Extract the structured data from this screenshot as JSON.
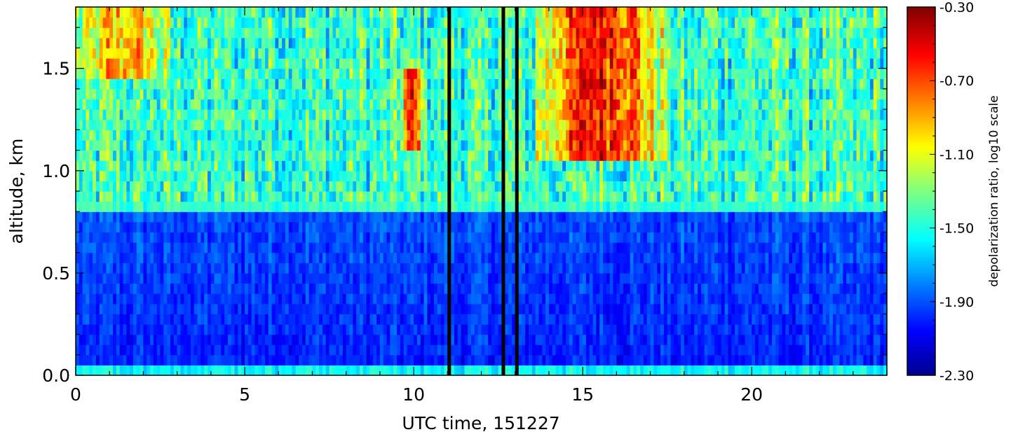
{
  "chart_data": {
    "type": "heatmap",
    "title": "",
    "xlabel": "UTC time, 151227",
    "ylabel": "altitude, km",
    "xlim": [
      0,
      24
    ],
    "ylim": [
      0,
      1.8
    ],
    "x_ticks": [
      {
        "value": 0,
        "label": "0"
      },
      {
        "value": 5,
        "label": "5"
      },
      {
        "value": 10,
        "label": "10"
      },
      {
        "value": 15,
        "label": "15"
      },
      {
        "value": 20,
        "label": "20"
      }
    ],
    "y_ticks": [
      {
        "value": 0.0,
        "label": "0.0"
      },
      {
        "value": 0.5,
        "label": "0.5"
      },
      {
        "value": 1.0,
        "label": "1.0"
      },
      {
        "value": 1.5,
        "label": "1.5"
      }
    ],
    "colorbar": {
      "label": "depolarization ratio, log10 scale",
      "scale": "log10",
      "range": [
        -2.3,
        -0.3
      ],
      "colormap": "jet",
      "ticks": [
        {
          "value": -0.3,
          "label": "-0.30"
        },
        {
          "value": -0.7,
          "label": "-0.70"
        },
        {
          "value": -1.1,
          "label": "-1.10"
        },
        {
          "value": -1.5,
          "label": "-1.50"
        },
        {
          "value": -1.9,
          "label": "-1.90"
        },
        {
          "value": -2.3,
          "label": "-2.30"
        }
      ]
    },
    "features": [
      {
        "description": "surface layer",
        "altitude_km": [
          0.0,
          0.05
        ],
        "value": -1.55
      },
      {
        "description": "boundary layer",
        "altitude_km": [
          0.05,
          0.8
        ],
        "value": -1.95
      },
      {
        "description": "upper layer",
        "altitude_km": [
          0.8,
          1.8
        ],
        "value": -1.45
      },
      {
        "description": "high depolarization patch",
        "time_h": [
          0.0,
          2.8
        ],
        "altitude_km": [
          1.45,
          1.8
        ],
        "value": -0.9
      },
      {
        "description": "high depolarization patch",
        "time_h": [
          9.6,
          10.3
        ],
        "altitude_km": [
          1.1,
          1.5
        ],
        "value": -0.6
      },
      {
        "description": "high depolarization patch",
        "time_h": [
          13.6,
          17.5
        ],
        "altitude_km": [
          1.05,
          1.8
        ],
        "value": -0.55
      }
    ],
    "missing_data_columns_h": [
      11.0,
      12.6,
      13.0
    ]
  }
}
